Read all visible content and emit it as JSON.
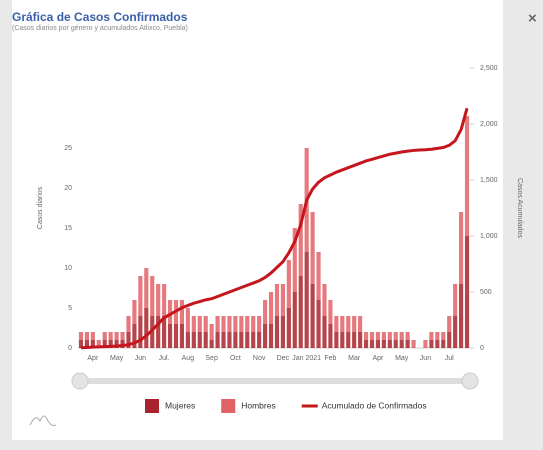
{
  "header": {
    "title": "Gráfica de Casos Confirmados",
    "subtitle": "(Casos diarios por género y acumulados Atlixco, Puebla)",
    "close": "×"
  },
  "chart_data": {
    "type": "bar-line",
    "ylabel": "Casos diarios",
    "y2label": "Casos Acumulados",
    "categories": [
      null,
      null,
      "Apr",
      null,
      null,
      null,
      "May",
      null,
      null,
      null,
      "Jun",
      null,
      null,
      null,
      "Jul.",
      null,
      null,
      null,
      "Aug",
      null,
      null,
      null,
      "Sep",
      null,
      null,
      null,
      "Oct",
      null,
      null,
      null,
      "Nov",
      null,
      null,
      null,
      "Dec",
      null,
      null,
      null,
      "Jan 2021",
      null,
      null,
      null,
      "Feb",
      null,
      null,
      null,
      "Mar",
      null,
      null,
      null,
      "Apr",
      null,
      null,
      null,
      "May",
      null,
      null,
      null,
      "Jun",
      null,
      null,
      null,
      "Jul",
      null,
      null,
      null
    ],
    "ylim": [
      0,
      35
    ],
    "yticks": [
      0,
      5,
      10,
      15,
      20,
      25
    ],
    "y2lim": [
      0,
      2500
    ],
    "y2ticks": [
      0,
      500,
      {
        "value": 1000,
        "label": "1,000"
      },
      {
        "value": 1500,
        "label": "1,500"
      },
      {
        "value": 2000,
        "label": "2,000"
      },
      {
        "value": 2500,
        "label": "2,500"
      }
    ],
    "series": [
      {
        "name": "Mujeres",
        "color": "#a8232b",
        "values": [
          1,
          1,
          1,
          0,
          1,
          1,
          1,
          1,
          2,
          3,
          4,
          5,
          4,
          4,
          4,
          3,
          3,
          3,
          2,
          2,
          2,
          2,
          1,
          2,
          2,
          2,
          2,
          2,
          2,
          2,
          2,
          3,
          3,
          4,
          4,
          5,
          7,
          9,
          12,
          8,
          6,
          4,
          3,
          2,
          2,
          2,
          2,
          2,
          1,
          1,
          1,
          1,
          1,
          1,
          1,
          1,
          0,
          0,
          0,
          1,
          1,
          1,
          2,
          4,
          8,
          14
        ]
      },
      {
        "name": "Hombres",
        "color": "#e06266",
        "values": [
          1,
          1,
          1,
          1,
          1,
          1,
          1,
          1,
          2,
          3,
          5,
          5,
          5,
          4,
          4,
          3,
          3,
          3,
          3,
          2,
          2,
          2,
          2,
          2,
          2,
          2,
          2,
          2,
          2,
          2,
          2,
          3,
          4,
          4,
          4,
          6,
          8,
          9,
          13,
          9,
          6,
          4,
          3,
          2,
          2,
          2,
          2,
          2,
          1,
          1,
          1,
          1,
          1,
          1,
          1,
          1,
          1,
          0,
          1,
          1,
          1,
          1,
          2,
          4,
          9,
          15
        ]
      },
      {
        "name": "Acumulado de Confirmados",
        "color": "#c4161c",
        "axis": "y2",
        "values": [
          2,
          5,
          8,
          10,
          12,
          15,
          18,
          22,
          30,
          45,
          70,
          110,
          160,
          215,
          270,
          300,
          330,
          360,
          380,
          400,
          415,
          430,
          440,
          460,
          480,
          500,
          520,
          540,
          560,
          580,
          600,
          630,
          670,
          720,
          770,
          850,
          950,
          1100,
          1320,
          1420,
          1480,
          1520,
          1545,
          1570,
          1590,
          1610,
          1630,
          1650,
          1670,
          1685,
          1700,
          1715,
          1730,
          1740,
          1750,
          1758,
          1764,
          1768,
          1770,
          1775,
          1782,
          1790,
          1810,
          1850,
          1950,
          2140
        ]
      }
    ]
  }
}
